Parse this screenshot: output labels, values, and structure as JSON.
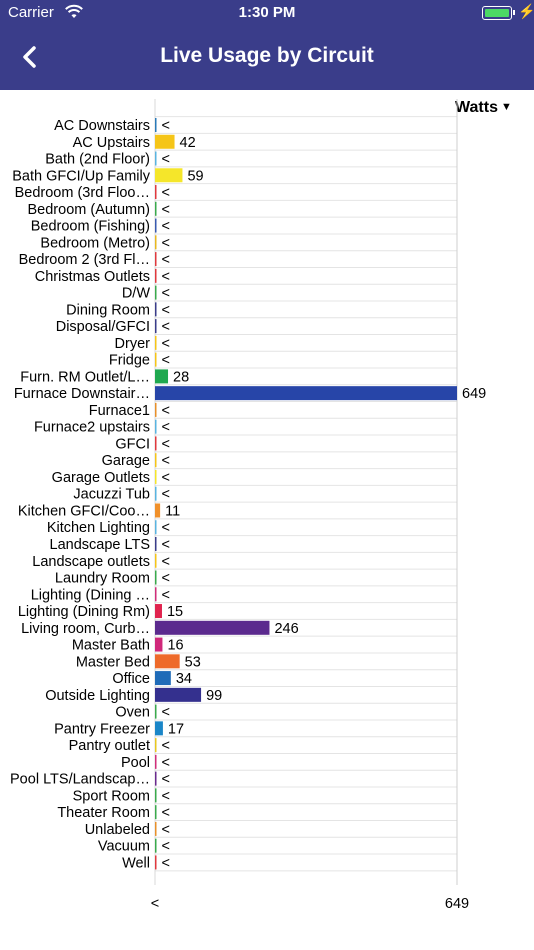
{
  "status_bar": {
    "carrier": "Carrier",
    "time": "1:30 PM",
    "wifi_icon": "wifi-icon",
    "battery_icon": "battery-icon",
    "charging_icon": "charging-bolt-icon"
  },
  "nav": {
    "back_icon": "chevron-left-icon",
    "title": "Live Usage by Circuit"
  },
  "unit_selector": {
    "label": "Watts",
    "icon": "caret-down-icon"
  },
  "chart_data": {
    "type": "bar",
    "orientation": "horizontal",
    "unit": "Watts",
    "categories": [
      "AC Downstairs",
      "AC Upstairs",
      "Bath (2nd Floor)",
      "Bath GFCI/Up Family",
      "Bedroom (3rd Floo…",
      "Bedroom (Autumn)",
      "Bedroom (Fishing)",
      "Bedroom (Metro)",
      "Bedroom 2 (3rd Fl…",
      "Christmas Outlets",
      "D/W",
      "Dining Room",
      "Disposal/GFCI",
      "Dryer",
      "Fridge",
      "Furn. RM Outlet/L…",
      "Furnace Downstair…",
      "Furnace1",
      "Furnace2 upstairs",
      "GFCI",
      "Garage",
      "Garage Outlets",
      "Jacuzzi Tub",
      "Kitchen GFCI/Coo…",
      "Kitchen Lighting",
      "Landscape LTS",
      "Landscape outlets",
      "Laundry Room",
      "Lighting (Dining …",
      "Lighting (Dining Rm)",
      "Living room, Curb…",
      "Master Bath",
      "Master Bed",
      "Office",
      "Outside Lighting",
      "Oven",
      "Pantry Freezer",
      "Pantry outlet",
      "Pool",
      "Pool LTS/Landscap…",
      "Sport Room",
      "Theater Room",
      "Unlabeled",
      "Vacuum",
      "Well"
    ],
    "values": [
      0,
      42,
      0,
      59,
      0,
      0,
      0,
      0,
      0,
      0,
      0,
      0,
      0,
      0,
      0,
      28,
      649,
      0,
      0,
      0,
      0,
      0,
      0,
      11,
      0,
      0,
      0,
      0,
      0,
      15,
      246,
      16,
      53,
      34,
      99,
      0,
      17,
      0,
      0,
      0,
      0,
      0,
      0,
      0,
      0
    ],
    "value_labels": [
      "<",
      "42",
      "<",
      "59",
      "<",
      "<",
      "<",
      "<",
      "<",
      "<",
      "<",
      "<",
      "<",
      "<",
      "<",
      "28",
      "649",
      "<",
      "<",
      "<",
      "<",
      "<",
      "<",
      "11",
      "<",
      "<",
      "<",
      "<",
      "<",
      "15",
      "246",
      "16",
      "53",
      "34",
      "99",
      "<",
      "17",
      "<",
      "<",
      "<",
      "<",
      "<",
      "<",
      "<",
      "<"
    ],
    "colors": [
      "#2a7ab8",
      "#f5c518",
      "#5ab4e0",
      "#f5e62a",
      "#e0393e",
      "#3aaa4c",
      "#3a5bb0",
      "#e8b820",
      "#e0393e",
      "#e0393e",
      "#3aaa4c",
      "#3a3d8a",
      "#3a3d8a",
      "#f5c518",
      "#f5c518",
      "#1fa84f",
      "#2745a8",
      "#e8902a",
      "#5ab4e0",
      "#e0393e",
      "#f5c518",
      "#f5e62a",
      "#5ab4e0",
      "#f0902a",
      "#5ab4e0",
      "#3a3d8a",
      "#f5c518",
      "#3aaa4c",
      "#d02e7a",
      "#e0234e",
      "#5b2a8e",
      "#d0287a",
      "#ee6a2a",
      "#1f6bb8",
      "#34308e",
      "#3aaa4c",
      "#1a86c8",
      "#e8c820",
      "#d02e7a",
      "#6a2a8e",
      "#3aaa4c",
      "#3aaa4c",
      "#e8902a",
      "#3aaa4c",
      "#e0393e"
    ],
    "x_tick_labels": [
      "<",
      "649"
    ],
    "xlim": [
      0,
      649
    ],
    "grid": true
  }
}
